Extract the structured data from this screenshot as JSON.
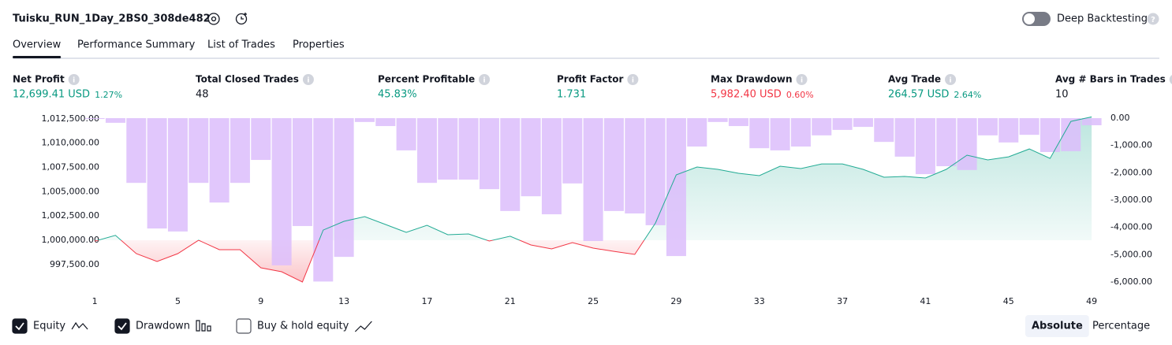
{
  "header": {
    "title": "Tuisku_RUN_1Day_2BS0_308de482",
    "toggle_label": "Deep Backtesting",
    "toggle_on": false
  },
  "tabs": [
    "Overview",
    "Performance Summary",
    "List of Trades",
    "Properties"
  ],
  "active_tab": 0,
  "metrics": [
    {
      "label": "Net Profit",
      "value": "12,699.41 USD",
      "percent": "1.27%",
      "tone": "positive"
    },
    {
      "label": "Total Closed Trades",
      "value": "48",
      "tone": "neutral"
    },
    {
      "label": "Percent Profitable",
      "value": "45.83%",
      "tone": "positive"
    },
    {
      "label": "Profit Factor",
      "value": "1.731",
      "tone": "positive"
    },
    {
      "label": "Max Drawdown",
      "value": "5,982.40 USD",
      "percent": "0.60%",
      "tone": "negative"
    },
    {
      "label": "Avg Trade",
      "value": "264.57 USD",
      "percent": "2.64%",
      "tone": "positive"
    },
    {
      "label": "Avg # Bars in Trades",
      "value": "10",
      "tone": "neutral"
    }
  ],
  "chart_data": {
    "type": "line",
    "x": [
      1,
      2,
      3,
      4,
      5,
      6,
      7,
      8,
      9,
      10,
      11,
      12,
      13,
      14,
      15,
      16,
      17,
      18,
      19,
      20,
      21,
      22,
      23,
      24,
      25,
      26,
      27,
      28,
      29,
      30,
      31,
      32,
      33,
      34,
      35,
      36,
      37,
      38,
      39,
      40,
      41,
      42,
      43,
      44,
      45,
      46,
      47,
      48,
      49
    ],
    "xlim": [
      0.54,
      49.49
    ],
    "xticks": [
      1,
      5,
      9,
      13,
      17,
      21,
      25,
      29,
      33,
      37,
      41,
      45,
      49
    ],
    "ylim": [
      995540,
      1012570
    ],
    "yticks": [
      {
        "value": 1012500,
        "label": "1,012,500.00"
      },
      {
        "value": 1010000,
        "label": "1,010,000.00"
      },
      {
        "value": 1007500,
        "label": "1,007,500.00"
      },
      {
        "value": 1005000,
        "label": "1,005,000.00"
      },
      {
        "value": 1002500,
        "label": "1,002,500.00"
      },
      {
        "value": 1000000,
        "label": "1,000,000.00"
      },
      {
        "value": 997500,
        "label": "997,500.00"
      }
    ],
    "y2lim": [
      -6057,
      0
    ],
    "y2ticks": [
      {
        "value": 0,
        "label": "0.00"
      },
      {
        "value": -1000,
        "label": "-1,000.00"
      },
      {
        "value": -2000,
        "label": "-2,000.00"
      },
      {
        "value": -3000,
        "label": "-3,000.00"
      },
      {
        "value": -4000,
        "label": "-4,000.00"
      },
      {
        "value": -5000,
        "label": "-5,000.00"
      },
      {
        "value": -6000,
        "label": "-6,000.00"
      }
    ],
    "series": [
      {
        "name": "Equity",
        "color": "#22ab94",
        "negative_color": "#f23645",
        "checked": true,
        "values": [
          999900,
          1000500,
          998620,
          997810,
          998620,
          1000000,
          999030,
          999030,
          997160,
          996760,
          995700,
          1001050,
          1001950,
          1002430,
          1001620,
          1000810,
          1001540,
          1000570,
          1000650,
          999920,
          1000410,
          999510,
          999110,
          999760,
          999190,
          998860,
          998540,
          1001780,
          1006730,
          1007540,
          1007300,
          1006890,
          1006650,
          1007620,
          1007380,
          1007860,
          1007860,
          1007300,
          1006490,
          1006570,
          1006410,
          1007300,
          1008760,
          1008270,
          1008590,
          1009400,
          1008430,
          1012240,
          1012700
        ]
      },
      {
        "name": "Drawdown",
        "type": "bar",
        "axis": "y2",
        "color": "#dcbdfb",
        "checked": true,
        "values": [
          -30,
          -170,
          -2370,
          -4040,
          -4150,
          -2370,
          -3090,
          -2370,
          -1530,
          -5390,
          -3950,
          -5982.4,
          -5080,
          -140,
          -290,
          -1180,
          -2370,
          -2250,
          -2250,
          -2600,
          -3400,
          -2860,
          -3520,
          -2390,
          -4500,
          -3400,
          -3490,
          -3920,
          -5050,
          -1040,
          -140,
          -290,
          -1100,
          -1180,
          -1040,
          -630,
          -430,
          -320,
          -870,
          -1410,
          -2050,
          -1760,
          -1900,
          -630,
          -890,
          -610,
          -1240,
          -1210,
          -260
        ]
      }
    ],
    "legend_extra": [
      {
        "name": "Buy & hold equity",
        "checked": false
      }
    ]
  },
  "scale_buttons": [
    "Absolute",
    "Percentage"
  ],
  "active_scale": 0
}
